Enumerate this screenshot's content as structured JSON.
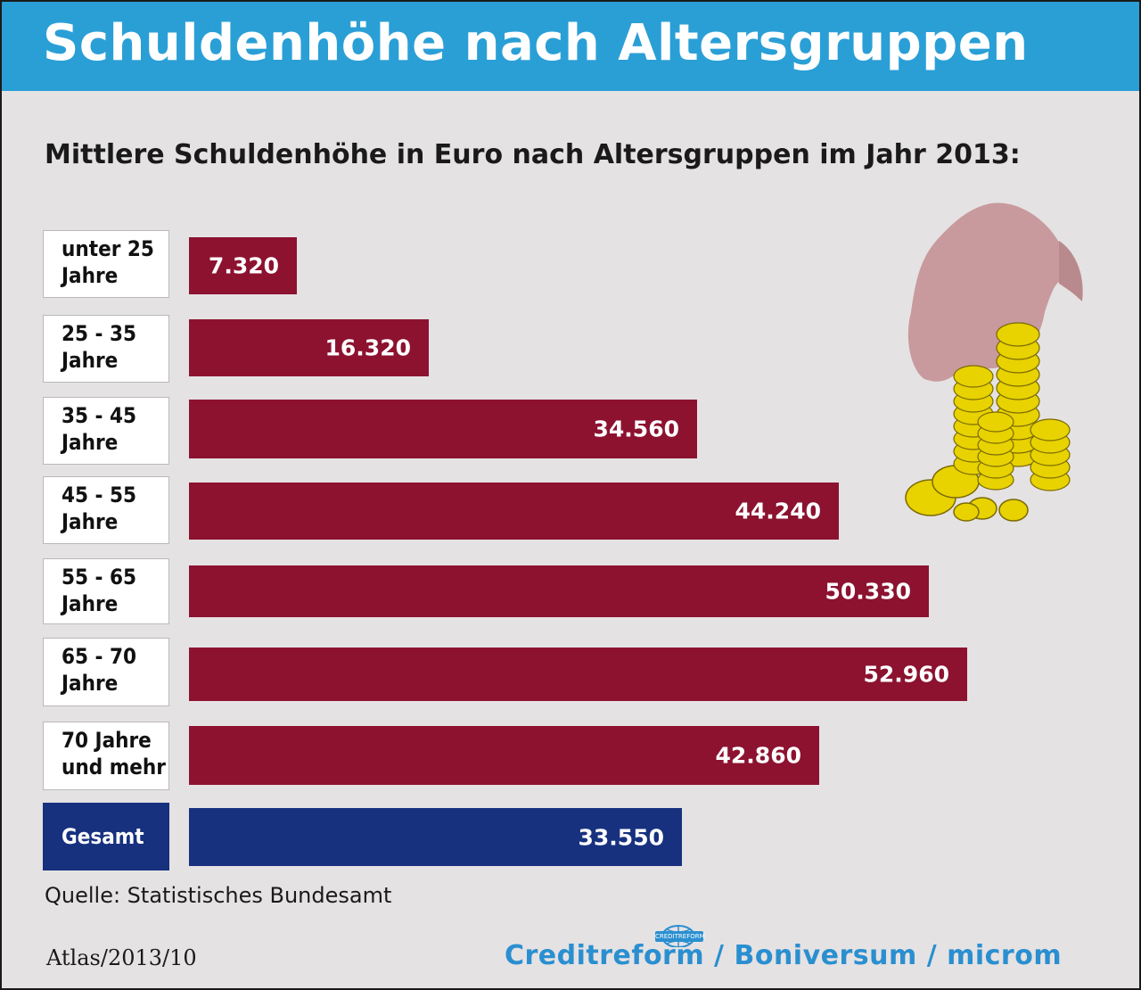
{
  "header": {
    "title": "Schuldenhöhe nach Altersgruppen",
    "subtitle": "Mittlere Schuldenhöhe in Euro nach Altersgruppen im Jahr 2013:"
  },
  "chart_data": {
    "type": "bar",
    "orientation": "horizontal",
    "title": "Mittlere Schuldenhöhe in Euro nach Altersgruppen im Jahr 2013:",
    "categories": [
      [
        "unter 25",
        "Jahre"
      ],
      [
        "25 - 35",
        "Jahre"
      ],
      [
        "35 - 45",
        "Jahre"
      ],
      [
        "45 - 55",
        "Jahre"
      ],
      [
        "55 - 65",
        "Jahre"
      ],
      [
        "65 - 70",
        "Jahre"
      ],
      [
        "70 Jahre",
        "und mehr"
      ],
      [
        "Gesamt"
      ]
    ],
    "values": [
      7320,
      16320,
      34560,
      44240,
      50330,
      52960,
      42860,
      33550
    ],
    "value_labels": [
      "7.320",
      "16.320",
      "34.560",
      "44.240",
      "50.330",
      "52.960",
      "42.860",
      "33.550"
    ],
    "highlight_index": 7,
    "colors": {
      "bar": "#8c1230",
      "total": "#17317f"
    },
    "xlim": [
      0,
      60000
    ],
    "grid": false,
    "legend": "none"
  },
  "footer": {
    "source": "Quelle: Statistisches Bundesamt",
    "id": "Atlas/2013/10",
    "logo_text": "Creditreform / Boniversum / microm",
    "badge_text": "CREDITREFORM"
  },
  "decoration": {
    "icon": "vulture-on-coins-icon"
  },
  "colors": {
    "header": "#2a9fd6",
    "background": "#e5e2e3"
  }
}
